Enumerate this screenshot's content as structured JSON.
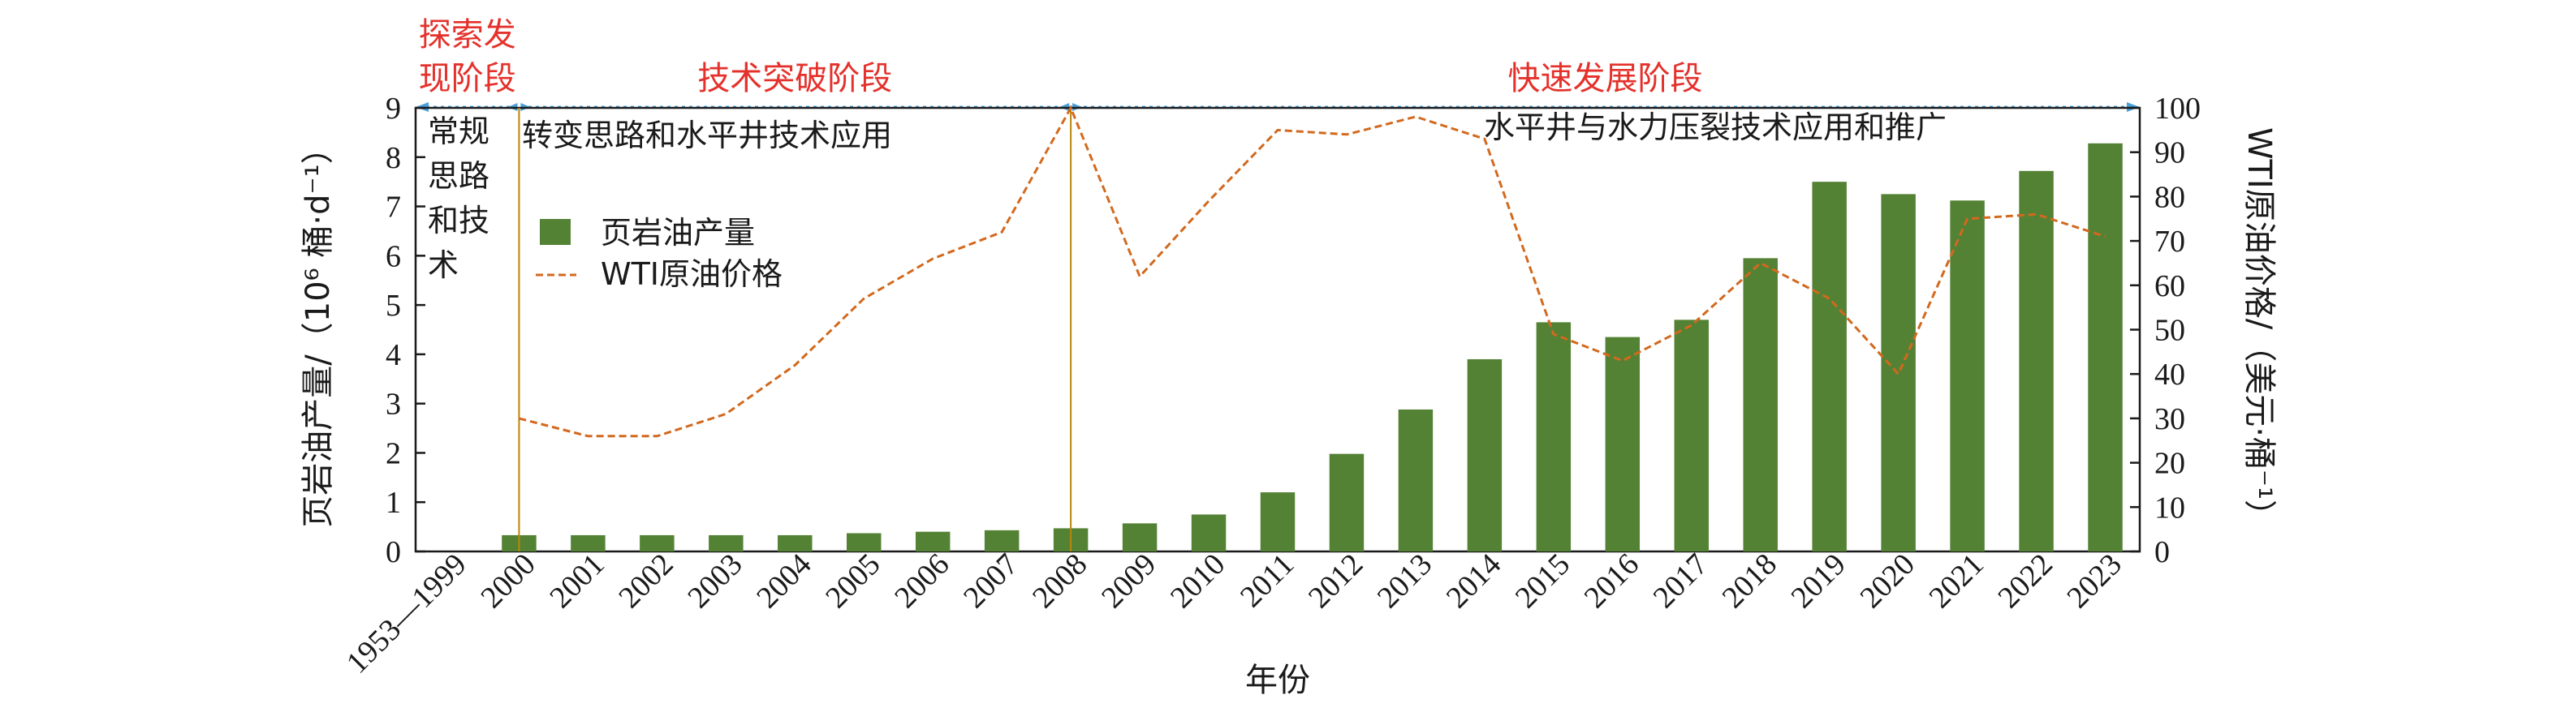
{
  "chart_data": {
    "type": "bar",
    "categories": [
      "1953—1999",
      "2000",
      "2001",
      "2002",
      "2003",
      "2004",
      "2005",
      "2006",
      "2007",
      "2008",
      "2009",
      "2010",
      "2011",
      "2012",
      "2013",
      "2014",
      "2015",
      "2016",
      "2017",
      "2018",
      "2019",
      "2020",
      "2021",
      "2022",
      "2023"
    ],
    "series": [
      {
        "name": "页岩油产量",
        "type": "bar",
        "axis": "left",
        "color": "#548235",
        "values": [
          null,
          0.33,
          0.33,
          0.33,
          0.33,
          0.33,
          0.37,
          0.4,
          0.43,
          0.47,
          0.57,
          0.75,
          1.2,
          1.98,
          2.88,
          3.9,
          4.65,
          4.35,
          4.7,
          5.95,
          7.5,
          7.25,
          7.12,
          7.72,
          8.28
        ]
      },
      {
        "name": "WTI原油价格",
        "type": "line",
        "axis": "right",
        "color": "#d2691e",
        "style": "dashed",
        "values": [
          null,
          30,
          26,
          26,
          31,
          42,
          57,
          66,
          72,
          100,
          62,
          79,
          95,
          94,
          98,
          93,
          49,
          43,
          51,
          65,
          57,
          40,
          75,
          76,
          71
        ]
      }
    ],
    "xlabel": "年份",
    "ylabel_left": "页岩油产量/（10⁶ 桶·d⁻¹）",
    "ylabel_right": "WTI原油价格/（美元·桶⁻¹）",
    "ylim_left": [
      0,
      9
    ],
    "yticks_left": [
      "0",
      "1",
      "2",
      "3",
      "4",
      "5",
      "6",
      "7",
      "8",
      "9"
    ],
    "ylim_right": [
      0,
      100
    ],
    "yticks_right": [
      "0",
      "10",
      "20",
      "30",
      "40",
      "50",
      "60",
      "70",
      "80",
      "90",
      "100"
    ],
    "legend_position": "upper-left",
    "grid": false,
    "phases": [
      {
        "label_line1": "探索发",
        "label_line2": "现阶段",
        "start": 0,
        "end": 1
      },
      {
        "label": "技术突破阶段",
        "start": 1,
        "end": 9
      },
      {
        "label": "快速发展阶段",
        "start": 9,
        "end": 24
      }
    ],
    "annotations": {
      "phase1_lines": [
        "常规",
        "思路",
        "和技",
        "术"
      ],
      "phase2": "转变思路和水平井技术应用",
      "phase3": "水平井与水力压裂技术应用和推广"
    }
  }
}
